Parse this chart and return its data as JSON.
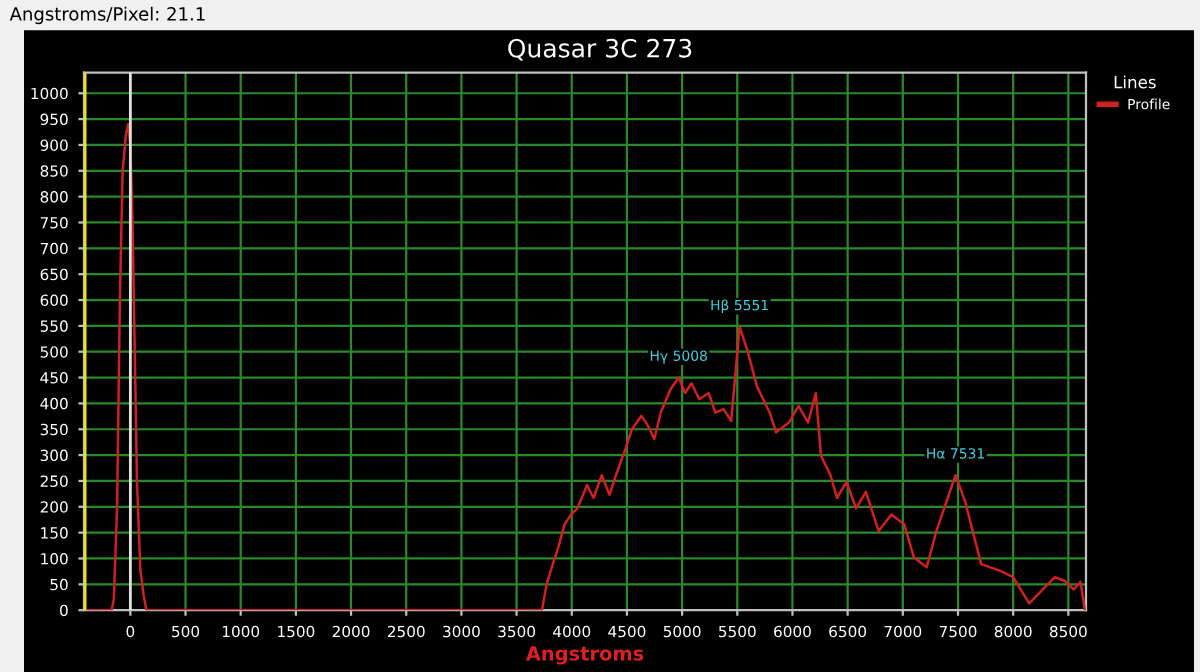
{
  "chart_data": {
    "type": "line",
    "title": "Quasar 3C 273",
    "xlabel": "Angstroms",
    "legend_title": "Lines",
    "legend": "top right",
    "annotations": [
      "Angstroms/Pixel: 21.1",
      {
        "text": "Hγ 5008",
        "x": 4969,
        "y": 450
      },
      {
        "text": "Hβ 5551",
        "x": 5521,
        "y": 548
      },
      {
        "text": "Hα 7531",
        "x": 7478,
        "y": 261
      }
    ],
    "series": [
      {
        "name": "Profile",
        "color": "#d02020",
        "x": [
          -420,
          -170,
          -150,
          -120,
          -95,
          -70,
          -40,
          -20,
          0,
          20,
          40,
          60,
          90,
          120,
          145,
          3730,
          3773,
          3819,
          3877,
          3935,
          3994,
          4052,
          4139,
          4197,
          4272,
          4342,
          4400,
          4487,
          4545,
          4632,
          4690,
          4748,
          4806,
          4894,
          4969,
          5027,
          5085,
          5155,
          5242,
          5300,
          5376,
          5445,
          5521,
          5591,
          5678,
          5794,
          5852,
          5968,
          6055,
          6142,
          6212,
          6258,
          6345,
          6403,
          6490,
          6577,
          6665,
          6781,
          6897,
          7013,
          7100,
          7216,
          7304,
          7478,
          7565,
          7710,
          7884,
          8000,
          8145,
          8291,
          8378,
          8465,
          8550,
          8610,
          8650
        ],
        "values": [
          0,
          0,
          20,
          200,
          600,
          850,
          920,
          940,
          900,
          750,
          500,
          250,
          80,
          30,
          0,
          0,
          51,
          83,
          121,
          166,
          185,
          197,
          242,
          217,
          261,
          223,
          261,
          312,
          350,
          376,
          357,
          331,
          382,
          427,
          450,
          420,
          439,
          408,
          420,
          382,
          389,
          366,
          548,
          503,
          433,
          382,
          344,
          363,
          395,
          363,
          420,
          299,
          261,
          217,
          248,
          197,
          229,
          153,
          185,
          166,
          102,
          83,
          153,
          261,
          210,
          89,
          76,
          64,
          13,
          45,
          64,
          57,
          40,
          55,
          0
        ]
      }
    ],
    "ref_lines": [
      {
        "axis": "x",
        "value": 0,
        "color": "#e0e0e0"
      },
      {
        "axis": "x",
        "value": -410,
        "color": "#e8e020"
      }
    ],
    "xlim": [
      -420,
      8660
    ],
    "ylim": [
      0,
      1040
    ],
    "xticks": [
      0,
      500,
      1000,
      1500,
      2000,
      2500,
      3000,
      3500,
      4000,
      4500,
      5000,
      5500,
      6000,
      6500,
      7000,
      7500,
      8000,
      8500
    ],
    "yticks": [
      0,
      50,
      100,
      150,
      200,
      250,
      300,
      350,
      400,
      450,
      500,
      550,
      600,
      650,
      700,
      750,
      800,
      850,
      900,
      950,
      1000
    ],
    "grid": true
  }
}
